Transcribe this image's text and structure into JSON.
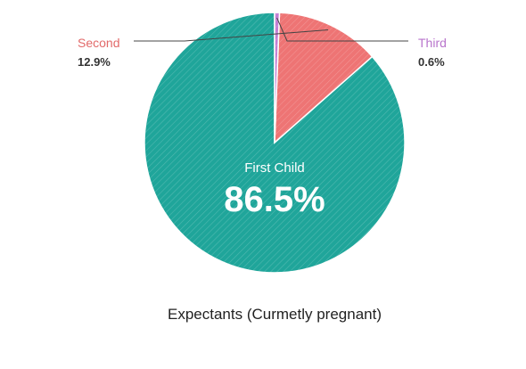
{
  "chart_data": {
    "type": "pie",
    "title": "",
    "caption": "Expectants (Curmetly pregnant)",
    "slices": [
      {
        "label": "First Child",
        "value": 86.5,
        "value_label": "86.5%",
        "color": "#1fa59a"
      },
      {
        "label": "Second",
        "value": 12.9,
        "value_label": "12.9%",
        "color": "#ee7474"
      },
      {
        "label": "Third",
        "value": 0.6,
        "value_label": "0.6%",
        "color": "#c27fd4"
      }
    ],
    "start_angle_deg": 0,
    "direction": "counterclockwise",
    "hatch": true
  }
}
